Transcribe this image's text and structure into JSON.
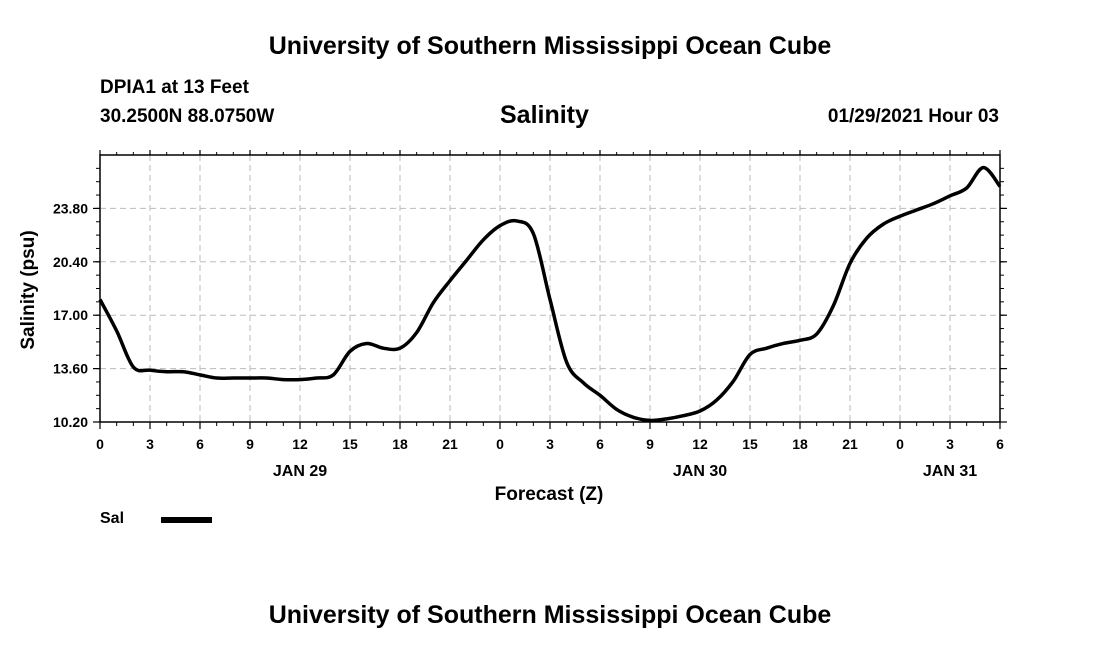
{
  "header": {
    "title": "University of Southern Mississippi Ocean Cube",
    "station": "DPIA1 at 13 Feet",
    "coordinates": "30.2500N 88.0750W",
    "datetime": "01/29/2021 Hour 03"
  },
  "footer": {
    "title": "University of Southern Mississippi Ocean Cube"
  },
  "legend": {
    "label": "Sal",
    "color": "#000000"
  },
  "chart_data": {
    "type": "line",
    "title": "Salinity",
    "xlabel": "Forecast (Z)",
    "ylabel": "Salinity (psu)",
    "x_unit": "forecast hour from 00Z JAN 29",
    "xlim": [
      0,
      54
    ],
    "ylim": [
      10.2,
      27.2
    ],
    "y_ticks": [
      "10.20",
      "13.60",
      "17.00",
      "20.40",
      "23.80"
    ],
    "y_tick_values": [
      10.2,
      13.6,
      17.0,
      20.4,
      23.8
    ],
    "x_ticks": [
      "0",
      "3",
      "6",
      "9",
      "12",
      "15",
      "18",
      "21",
      "0",
      "3",
      "6",
      "9",
      "12",
      "15",
      "18",
      "21",
      "0",
      "3",
      "6"
    ],
    "x_tick_values": [
      0,
      3,
      6,
      9,
      12,
      15,
      18,
      21,
      24,
      27,
      30,
      33,
      36,
      39,
      42,
      45,
      48,
      51,
      54
    ],
    "day_labels": [
      {
        "label": "JAN 29",
        "x": 12
      },
      {
        "label": "JAN 30",
        "x": 36
      },
      {
        "label": "JAN 31",
        "x": 51
      }
    ],
    "grid": true,
    "legend_position": "bottom-left",
    "series": [
      {
        "name": "Sal",
        "color": "#000000",
        "x": [
          0,
          1,
          2,
          3,
          4,
          5,
          6,
          7,
          8,
          9,
          10,
          11,
          12,
          13,
          14,
          15,
          16,
          17,
          18,
          19,
          20,
          21,
          22,
          23,
          24,
          25,
          26,
          27,
          28,
          29,
          30,
          31,
          32,
          33,
          34,
          35,
          36,
          37,
          38,
          39,
          40,
          41,
          42,
          43,
          44,
          45,
          46,
          47,
          48,
          49,
          50,
          51,
          52,
          53,
          54
        ],
        "values": [
          18.0,
          16.0,
          13.7,
          13.5,
          13.4,
          13.4,
          13.2,
          13.0,
          13.0,
          13.0,
          13.0,
          12.9,
          12.9,
          13.0,
          13.2,
          14.7,
          15.2,
          14.9,
          14.9,
          15.9,
          17.8,
          19.2,
          20.5,
          21.8,
          22.7,
          23.0,
          22.2,
          18.0,
          14.0,
          12.7,
          11.9,
          11.0,
          10.5,
          10.3,
          10.4,
          10.6,
          10.9,
          11.6,
          12.8,
          14.5,
          14.9,
          15.2,
          15.4,
          15.8,
          17.6,
          20.3,
          21.9,
          22.8,
          23.3,
          23.7,
          24.1,
          24.6,
          25.1,
          26.4,
          25.2
        ]
      }
    ]
  }
}
